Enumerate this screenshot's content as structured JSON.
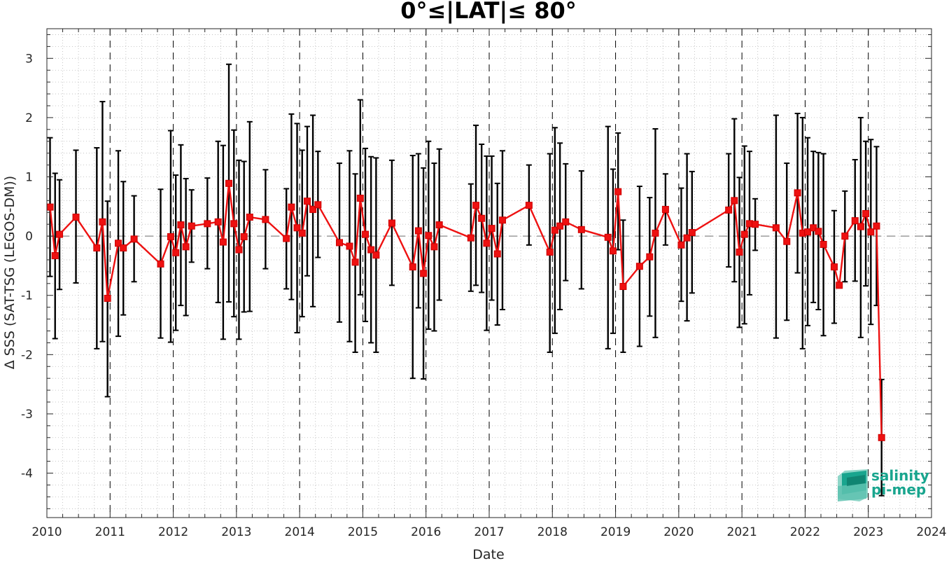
{
  "chart_data": {
    "type": "line",
    "title": "0°≤|LAT|≤ 80°",
    "xlabel": "Date",
    "ylabel": "Δ SSS (SAT-TSG (LEGOS-DM))",
    "xlim": [
      2010,
      2024
    ],
    "ylim": [
      -4.75,
      3.5
    ],
    "x_ticks": [
      "2010",
      "2011",
      "2012",
      "2013",
      "2014",
      "2015",
      "2016",
      "2017",
      "2018",
      "2019",
      "2020",
      "2021",
      "2022",
      "2023",
      "2024"
    ],
    "y_ticks": [
      "3",
      "2",
      "1",
      "0",
      "-1",
      "-2",
      "-3",
      "-4"
    ],
    "grid": "minor-dotted",
    "year_separators": "dashed-vertical",
    "zero_line": "dashed-horizontal",
    "series": [
      {
        "color": "#ee1111",
        "errorbar_color": "#000000",
        "marker": "square",
        "points": [
          {
            "x": 2010.05,
            "y": 0.49,
            "lo": -0.68,
            "hi": 1.66
          },
          {
            "x": 2010.13,
            "y": -0.33,
            "lo": -1.73,
            "hi": 1.06
          },
          {
            "x": 2010.2,
            "y": 0.03,
            "lo": -0.9,
            "hi": 0.95
          },
          {
            "x": 2010.46,
            "y": 0.32,
            "lo": -0.79,
            "hi": 1.45
          },
          {
            "x": 2010.79,
            "y": -0.2,
            "lo": -1.9,
            "hi": 1.49
          },
          {
            "x": 2010.88,
            "y": 0.24,
            "lo": -1.78,
            "hi": 2.27
          },
          {
            "x": 2010.96,
            "y": -1.05,
            "lo": -2.71,
            "hi": 0.59
          },
          {
            "x": 2011.13,
            "y": -0.12,
            "lo": -1.69,
            "hi": 1.44
          },
          {
            "x": 2011.21,
            "y": -0.2,
            "lo": -1.33,
            "hi": 0.92
          },
          {
            "x": 2011.38,
            "y": -0.05,
            "lo": -0.77,
            "hi": 0.68
          },
          {
            "x": 2011.8,
            "y": -0.47,
            "lo": -1.72,
            "hi": 0.79
          },
          {
            "x": 2011.96,
            "y": -0.01,
            "lo": -1.79,
            "hi": 1.78
          },
          {
            "x": 2012.04,
            "y": -0.28,
            "lo": -1.59,
            "hi": 1.03
          },
          {
            "x": 2012.12,
            "y": 0.19,
            "lo": -1.17,
            "hi": 1.54
          },
          {
            "x": 2012.2,
            "y": -0.18,
            "lo": -1.34,
            "hi": 0.97
          },
          {
            "x": 2012.29,
            "y": 0.17,
            "lo": -0.44,
            "hi": 0.78
          },
          {
            "x": 2012.54,
            "y": 0.21,
            "lo": -0.55,
            "hi": 0.98
          },
          {
            "x": 2012.71,
            "y": 0.24,
            "lo": -1.12,
            "hi": 1.6
          },
          {
            "x": 2012.79,
            "y": -0.1,
            "lo": -1.74,
            "hi": 1.53
          },
          {
            "x": 2012.88,
            "y": 0.89,
            "lo": -1.11,
            "hi": 2.9
          },
          {
            "x": 2012.96,
            "y": 0.21,
            "lo": -1.36,
            "hi": 1.79
          },
          {
            "x": 2013.04,
            "y": -0.23,
            "lo": -1.74,
            "hi": 1.28
          },
          {
            "x": 2013.12,
            "y": -0.01,
            "lo": -1.28,
            "hi": 1.26
          },
          {
            "x": 2013.21,
            "y": 0.32,
            "lo": -1.27,
            "hi": 1.93
          },
          {
            "x": 2013.46,
            "y": 0.28,
            "lo": -0.55,
            "hi": 1.12
          },
          {
            "x": 2013.79,
            "y": -0.04,
            "lo": -0.89,
            "hi": 0.8
          },
          {
            "x": 2013.87,
            "y": 0.49,
            "lo": -1.07,
            "hi": 2.06
          },
          {
            "x": 2013.96,
            "y": 0.14,
            "lo": -1.63,
            "hi": 1.9
          },
          {
            "x": 2014.04,
            "y": 0.05,
            "lo": -1.36,
            "hi": 1.45
          },
          {
            "x": 2014.12,
            "y": 0.59,
            "lo": -0.67,
            "hi": 1.85
          },
          {
            "x": 2014.21,
            "y": 0.45,
            "lo": -1.19,
            "hi": 2.04
          },
          {
            "x": 2014.29,
            "y": 0.53,
            "lo": -0.36,
            "hi": 1.43
          },
          {
            "x": 2014.63,
            "y": -0.11,
            "lo": -1.45,
            "hi": 1.23
          },
          {
            "x": 2014.79,
            "y": -0.17,
            "lo": -1.78,
            "hi": 1.44
          },
          {
            "x": 2014.88,
            "y": -0.44,
            "lo": -1.96,
            "hi": 1.05
          },
          {
            "x": 2014.96,
            "y": 0.64,
            "lo": -0.99,
            "hi": 2.3
          },
          {
            "x": 2015.04,
            "y": 0.03,
            "lo": -1.44,
            "hi": 1.48
          },
          {
            "x": 2015.13,
            "y": -0.23,
            "lo": -1.8,
            "hi": 1.34
          },
          {
            "x": 2015.21,
            "y": -0.32,
            "lo": -1.96,
            "hi": 1.32
          },
          {
            "x": 2015.46,
            "y": 0.22,
            "lo": -0.83,
            "hi": 1.28
          },
          {
            "x": 2015.79,
            "y": -0.52,
            "lo": -2.4,
            "hi": 1.36
          },
          {
            "x": 2015.88,
            "y": 0.09,
            "lo": -1.21,
            "hi": 1.39
          },
          {
            "x": 2015.96,
            "y": -0.63,
            "lo": -2.41,
            "hi": 1.15
          },
          {
            "x": 2016.04,
            "y": 0.01,
            "lo": -1.57,
            "hi": 1.6
          },
          {
            "x": 2016.13,
            "y": -0.18,
            "lo": -1.6,
            "hi": 1.23
          },
          {
            "x": 2016.21,
            "y": 0.19,
            "lo": -1.08,
            "hi": 1.47
          },
          {
            "x": 2016.71,
            "y": -0.03,
            "lo": -0.93,
            "hi": 0.88
          },
          {
            "x": 2016.79,
            "y": 0.52,
            "lo": -0.83,
            "hi": 1.87
          },
          {
            "x": 2016.88,
            "y": 0.3,
            "lo": -0.95,
            "hi": 1.55
          },
          {
            "x": 2016.96,
            "y": -0.12,
            "lo": -1.59,
            "hi": 1.35
          },
          {
            "x": 2017.04,
            "y": 0.13,
            "lo": -1.08,
            "hi": 1.35
          },
          {
            "x": 2017.13,
            "y": -0.3,
            "lo": -1.5,
            "hi": 0.89
          },
          {
            "x": 2017.21,
            "y": 0.27,
            "lo": -1.24,
            "hi": 1.44
          },
          {
            "x": 2017.63,
            "y": 0.52,
            "lo": -0.15,
            "hi": 1.2
          },
          {
            "x": 2017.96,
            "y": -0.27,
            "lo": -1.96,
            "hi": 1.39
          },
          {
            "x": 2018.04,
            "y": 0.1,
            "lo": -1.64,
            "hi": 1.83
          },
          {
            "x": 2018.12,
            "y": 0.17,
            "lo": -1.24,
            "hi": 1.57
          },
          {
            "x": 2018.21,
            "y": 0.24,
            "lo": -0.75,
            "hi": 1.22
          },
          {
            "x": 2018.46,
            "y": 0.11,
            "lo": -0.89,
            "hi": 1.1
          },
          {
            "x": 2018.88,
            "y": -0.02,
            "lo": -1.9,
            "hi": 1.85
          },
          {
            "x": 2018.96,
            "y": -0.25,
            "lo": -1.64,
            "hi": 1.13
          },
          {
            "x": 2019.04,
            "y": 0.75,
            "lo": -0.23,
            "hi": 1.74
          },
          {
            "x": 2019.12,
            "y": -0.85,
            "lo": -1.96,
            "hi": 0.27
          },
          {
            "x": 2019.38,
            "y": -0.51,
            "lo": -1.86,
            "hi": 0.84
          },
          {
            "x": 2019.54,
            "y": -0.35,
            "lo": -1.35,
            "hi": 0.65
          },
          {
            "x": 2019.63,
            "y": 0.05,
            "lo": -1.71,
            "hi": 1.81
          },
          {
            "x": 2019.79,
            "y": 0.45,
            "lo": -0.15,
            "hi": 1.05
          },
          {
            "x": 2020.04,
            "y": -0.15,
            "lo": -1.1,
            "hi": 0.81
          },
          {
            "x": 2020.13,
            "y": -0.03,
            "lo": -1.43,
            "hi": 1.39
          },
          {
            "x": 2020.21,
            "y": 0.06,
            "lo": -0.96,
            "hi": 1.09
          },
          {
            "x": 2020.79,
            "y": 0.44,
            "lo": -0.52,
            "hi": 1.39
          },
          {
            "x": 2020.88,
            "y": 0.6,
            "lo": -0.77,
            "hi": 1.98
          },
          {
            "x": 2020.96,
            "y": -0.27,
            "lo": -1.54,
            "hi": 0.99
          },
          {
            "x": 2021.04,
            "y": 0.03,
            "lo": -1.48,
            "hi": 1.52
          },
          {
            "x": 2021.12,
            "y": 0.21,
            "lo": -0.99,
            "hi": 1.43
          },
          {
            "x": 2021.21,
            "y": 0.2,
            "lo": -0.24,
            "hi": 0.63
          },
          {
            "x": 2021.54,
            "y": 0.14,
            "lo": -1.72,
            "hi": 2.04
          },
          {
            "x": 2021.71,
            "y": -0.09,
            "lo": -1.42,
            "hi": 1.23
          },
          {
            "x": 2021.88,
            "y": 0.73,
            "lo": -0.62,
            "hi": 2.07
          },
          {
            "x": 2021.96,
            "y": 0.05,
            "lo": -1.9,
            "hi": 2.0
          },
          {
            "x": 2022.04,
            "y": 0.07,
            "lo": -1.51,
            "hi": 1.66
          },
          {
            "x": 2022.13,
            "y": 0.14,
            "lo": -1.12,
            "hi": 1.43
          },
          {
            "x": 2022.21,
            "y": 0.08,
            "lo": -1.24,
            "hi": 1.41
          },
          {
            "x": 2022.29,
            "y": -0.14,
            "lo": -1.68,
            "hi": 1.39
          },
          {
            "x": 2022.46,
            "y": -0.52,
            "lo": -1.47,
            "hi": 0.43
          },
          {
            "x": 2022.54,
            "y": -0.83,
            "lo": -0.86,
            "hi": -0.79
          },
          {
            "x": 2022.63,
            "y": 0.0,
            "lo": -0.77,
            "hi": 0.76
          },
          {
            "x": 2022.79,
            "y": 0.26,
            "lo": -0.76,
            "hi": 1.29
          },
          {
            "x": 2022.88,
            "y": 0.16,
            "lo": -1.71,
            "hi": 2.0
          },
          {
            "x": 2022.96,
            "y": 0.38,
            "lo": -0.84,
            "hi": 1.6
          },
          {
            "x": 2023.04,
            "y": 0.07,
            "lo": -1.49,
            "hi": 1.63
          },
          {
            "x": 2023.13,
            "y": 0.17,
            "lo": -1.17,
            "hi": 1.51
          },
          {
            "x": 2023.21,
            "y": -3.4,
            "lo": -4.38,
            "hi": -2.42
          }
        ]
      }
    ]
  },
  "logo": {
    "line1": "salinity",
    "line2": "pi-mep",
    "color": "#19a58e"
  }
}
